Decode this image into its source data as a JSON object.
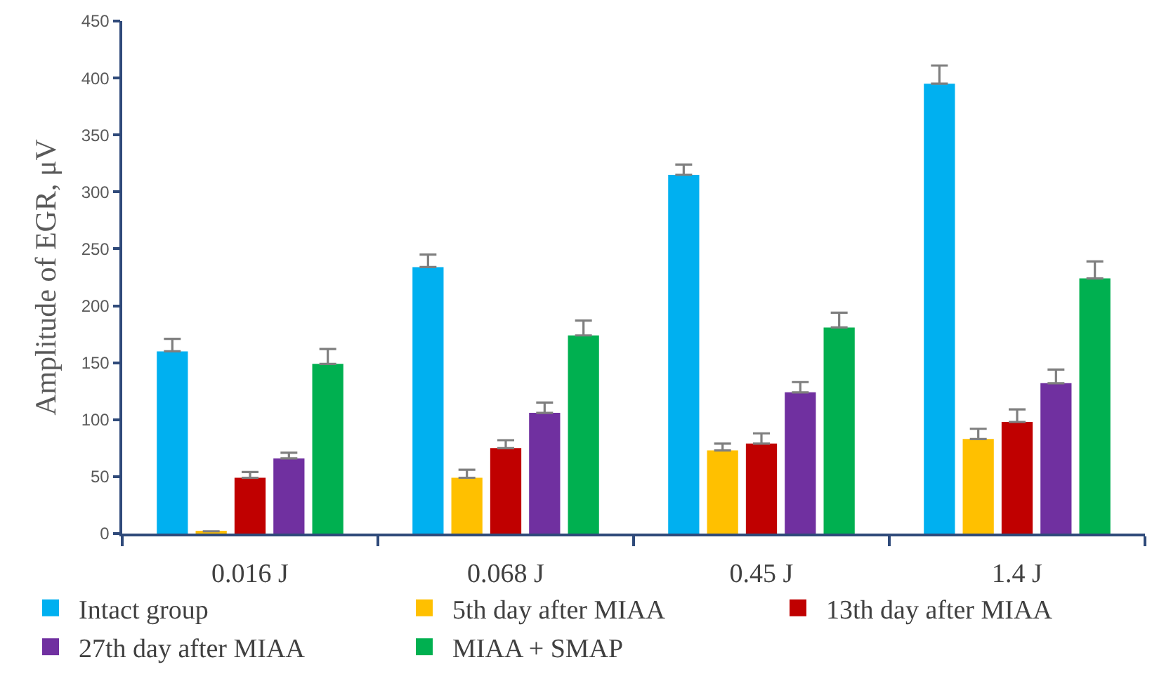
{
  "chart_data": {
    "type": "bar",
    "ylabel": "Amplitude of EGR, μV",
    "categories": [
      "0.016 J",
      "0.068 J",
      "0.45 J",
      "1.4 J"
    ],
    "ylim": [
      0,
      450
    ],
    "yticks": [
      0,
      50,
      100,
      150,
      200,
      250,
      300,
      350,
      400,
      450
    ],
    "legend": "bottom",
    "series": [
      {
        "name": "Intact group",
        "color": "#00b0f0",
        "values": [
          160,
          234,
          315,
          395
        ],
        "errors": [
          [
            160,
            171
          ],
          [
            234,
            245
          ],
          [
            315,
            324
          ],
          [
            395,
            411
          ]
        ]
      },
      {
        "name": "5th day after MIAA",
        "color": "#ffc000",
        "values": [
          2,
          49,
          73,
          83
        ],
        "errors": [
          null,
          [
            49,
            56
          ],
          [
            73,
            79
          ],
          [
            83,
            92
          ]
        ]
      },
      {
        "name": "13th day after MIAA",
        "color": "#c00000",
        "values": [
          49,
          75,
          79,
          98
        ],
        "errors": [
          [
            49,
            54
          ],
          [
            75,
            82
          ],
          [
            79,
            88
          ],
          [
            98,
            109
          ]
        ]
      },
      {
        "name": "27th day after MIAA",
        "color": "#7030a0",
        "values": [
          66,
          106,
          124,
          132
        ],
        "errors": [
          [
            66,
            71
          ],
          [
            106,
            115
          ],
          [
            124,
            133
          ],
          [
            132,
            144
          ]
        ]
      },
      {
        "name": "MIAA + SMAP",
        "color": "#00b050",
        "values": [
          149,
          174,
          181,
          224
        ],
        "errors": [
          [
            149,
            162
          ],
          [
            174,
            187
          ],
          [
            181,
            194
          ],
          [
            224,
            239
          ]
        ]
      }
    ]
  }
}
